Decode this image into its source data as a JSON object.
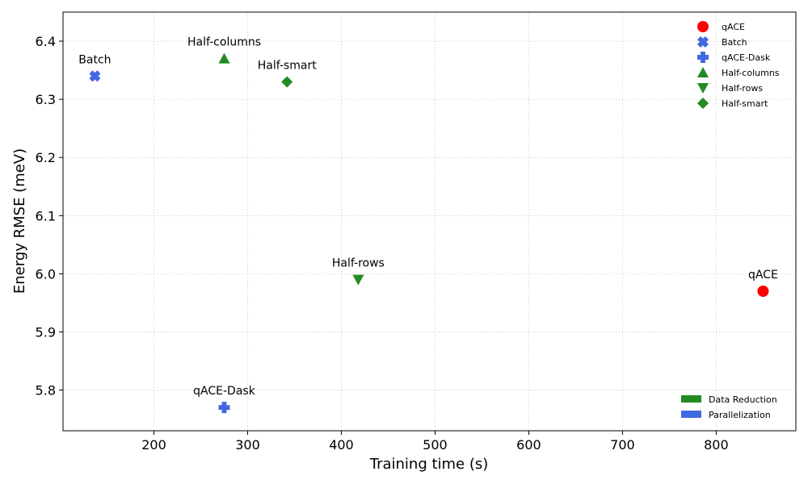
{
  "chart_data": {
    "type": "scatter",
    "xlabel": "Training time (s)",
    "ylabel": "Energy RMSE (meV)",
    "xlim": [
      103,
      885
    ],
    "ylim": [
      5.73,
      6.45
    ],
    "x_ticks": [
      200,
      300,
      400,
      500,
      600,
      700,
      800
    ],
    "y_ticks": [
      5.8,
      5.9,
      6.0,
      6.1,
      6.2,
      6.3,
      6.4
    ],
    "grid": true,
    "series": [
      {
        "name": "qACE",
        "x": 850,
        "y": 5.97,
        "color": "#ff0000",
        "marker": "circle",
        "label": "qACE"
      },
      {
        "name": "Batch",
        "x": 137,
        "y": 6.34,
        "color": "#4169e1",
        "marker": "x",
        "label": "Batch"
      },
      {
        "name": "qACE-Dask",
        "x": 275,
        "y": 5.77,
        "color": "#4169e1",
        "marker": "plus",
        "label": "qACE-Dask"
      },
      {
        "name": "Half-columns",
        "x": 275,
        "y": 6.37,
        "color": "#228b22",
        "marker": "triangle-up",
        "label": "Half-columns"
      },
      {
        "name": "Half-rows",
        "x": 418,
        "y": 5.99,
        "color": "#228b22",
        "marker": "triangle-down",
        "label": "Half-rows"
      },
      {
        "name": "Half-smart",
        "x": 342,
        "y": 6.33,
        "color": "#228b22",
        "marker": "diamond",
        "label": "Half-smart"
      }
    ],
    "legend_placement": "top-right",
    "category_legend": [
      {
        "label": "Data Reduction",
        "color": "#228b22"
      },
      {
        "label": "Parallelization",
        "color": "#4169e1"
      }
    ],
    "category_legend_placement": "bottom-right"
  }
}
